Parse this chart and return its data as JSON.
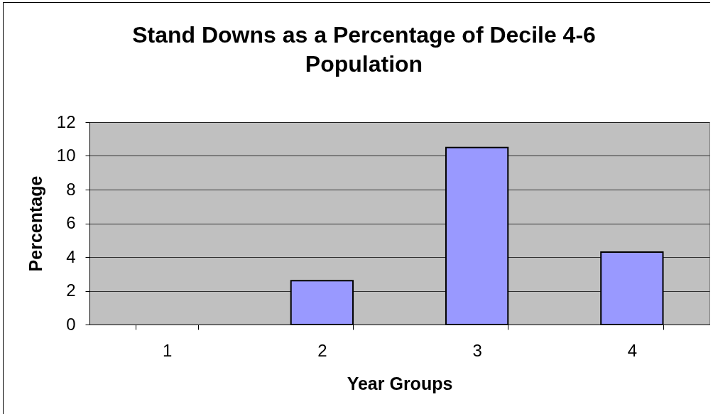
{
  "chart_data": {
    "type": "bar",
    "title": "Stand Downs as a Percentage of Decile 4-6 Population",
    "xlabel": "Year Groups",
    "ylabel": "Percentage",
    "categories": [
      "1",
      "2",
      "3",
      "4"
    ],
    "values": [
      null,
      2.6,
      10.5,
      4.3
    ],
    "color": "#9999ff",
    "ylim": [
      0,
      12
    ],
    "yticks": [
      0,
      2,
      4,
      6,
      8,
      10,
      12
    ],
    "grid": "y"
  }
}
